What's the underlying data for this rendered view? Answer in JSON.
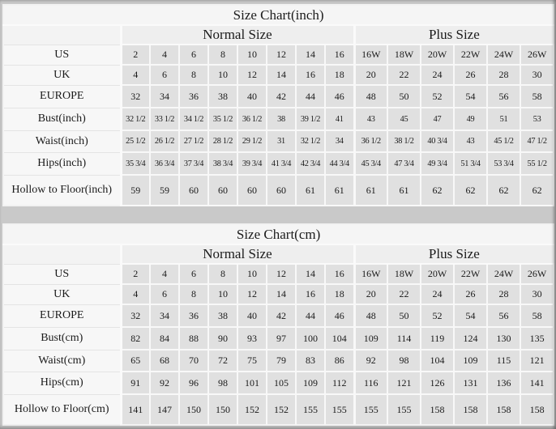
{
  "colors": {
    "page_background": "#c9c9c9",
    "data_cell_background": "#e0e0e0",
    "label_cell_background": "#f7f7f7",
    "title_cell_background": "#f5f5f5",
    "group_header_background": "#eeeeee",
    "cell_border": "#f8f8f8",
    "text": "#1b1b1b"
  },
  "chart_data": [
    {
      "type": "table",
      "title": "Size Chart(inch)",
      "normal_header": "Normal Size",
      "plus_header": "Plus Size",
      "rows": [
        {
          "label": "US",
          "normal": [
            "2",
            "4",
            "6",
            "8",
            "10",
            "12",
            "14",
            "16"
          ],
          "plus": [
            "16W",
            "18W",
            "20W",
            "22W",
            "24W",
            "26W"
          ]
        },
        {
          "label": "UK",
          "normal": [
            "4",
            "6",
            "8",
            "10",
            "12",
            "14",
            "16",
            "18"
          ],
          "plus": [
            "20",
            "22",
            "24",
            "26",
            "28",
            "30"
          ]
        },
        {
          "label": "EUROPE",
          "normal": [
            "32",
            "34",
            "36",
            "38",
            "40",
            "42",
            "44",
            "46"
          ],
          "plus": [
            "48",
            "50",
            "52",
            "54",
            "56",
            "58"
          ]
        },
        {
          "label": "Bust(inch)",
          "normal": [
            "32 1/2",
            "33 1/2",
            "34 1/2",
            "35 1/2",
            "36 1/2",
            "38",
            "39 1/2",
            "41"
          ],
          "plus": [
            "43",
            "45",
            "47",
            "49",
            "51",
            "53"
          ]
        },
        {
          "label": "Waist(inch)",
          "normal": [
            "25 1/2",
            "26 1/2",
            "27 1/2",
            "28 1/2",
            "29 1/2",
            "31",
            "32 1/2",
            "34"
          ],
          "plus": [
            "36 1/2",
            "38 1/2",
            "40 3/4",
            "43",
            "45 1/2",
            "47 1/2"
          ]
        },
        {
          "label": "Hips(inch)",
          "normal": [
            "35 3/4",
            "36 3/4",
            "37 3/4",
            "38 3/4",
            "39 3/4",
            "41 3/4",
            "42 3/4",
            "44 3/4"
          ],
          "plus": [
            "45 3/4",
            "47 3/4",
            "49 3/4",
            "51 3/4",
            "53 3/4",
            "55 1/2"
          ]
        },
        {
          "label": "Hollow to Floor(inch)",
          "normal": [
            "59",
            "59",
            "60",
            "60",
            "60",
            "60",
            "61",
            "61"
          ],
          "plus": [
            "61",
            "61",
            "62",
            "62",
            "62",
            "62"
          ]
        }
      ]
    },
    {
      "type": "table",
      "title": "Size Chart(cm)",
      "normal_header": "Normal Size",
      "plus_header": "Plus Size",
      "rows": [
        {
          "label": "US",
          "normal": [
            "2",
            "4",
            "6",
            "8",
            "10",
            "12",
            "14",
            "16"
          ],
          "plus": [
            "16W",
            "18W",
            "20W",
            "22W",
            "24W",
            "26W"
          ]
        },
        {
          "label": "UK",
          "normal": [
            "4",
            "6",
            "8",
            "10",
            "12",
            "14",
            "16",
            "18"
          ],
          "plus": [
            "20",
            "22",
            "24",
            "26",
            "28",
            "30"
          ]
        },
        {
          "label": "EUROPE",
          "normal": [
            "32",
            "34",
            "36",
            "38",
            "40",
            "42",
            "44",
            "46"
          ],
          "plus": [
            "48",
            "50",
            "52",
            "54",
            "56",
            "58"
          ]
        },
        {
          "label": "Bust(cm)",
          "normal": [
            "82",
            "84",
            "88",
            "90",
            "93",
            "97",
            "100",
            "104"
          ],
          "plus": [
            "109",
            "114",
            "119",
            "124",
            "130",
            "135"
          ]
        },
        {
          "label": "Waist(cm)",
          "normal": [
            "65",
            "68",
            "70",
            "72",
            "75",
            "79",
            "83",
            "86"
          ],
          "plus": [
            "92",
            "98",
            "104",
            "109",
            "115",
            "121"
          ]
        },
        {
          "label": "Hips(cm)",
          "normal": [
            "91",
            "92",
            "96",
            "98",
            "101",
            "105",
            "109",
            "112"
          ],
          "plus": [
            "116",
            "121",
            "126",
            "131",
            "136",
            "141"
          ]
        },
        {
          "label": "Hollow to Floor(cm)",
          "normal": [
            "141",
            "147",
            "150",
            "150",
            "152",
            "152",
            "155",
            "155"
          ],
          "plus": [
            "155",
            "155",
            "158",
            "158",
            "158",
            "158"
          ]
        }
      ]
    }
  ]
}
